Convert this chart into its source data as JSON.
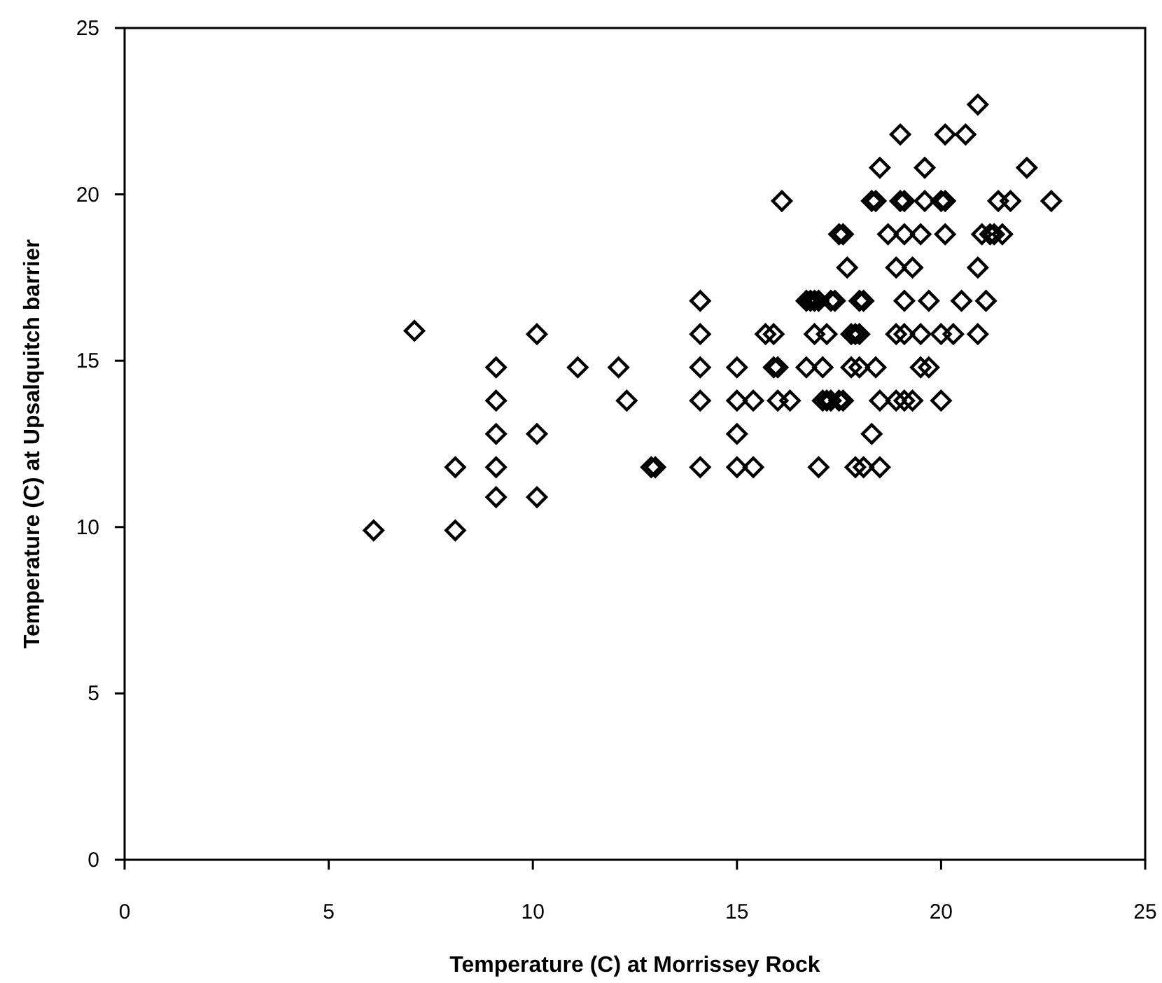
{
  "chart_data": {
    "type": "scatter",
    "xlabel": "Temperature (C) at Morrissey Rock",
    "ylabel": "Temperature (C) at Upsalquitch barrier",
    "xlim": [
      0,
      25
    ],
    "ylim": [
      0,
      25
    ],
    "xticks": [
      0,
      5,
      10,
      15,
      20,
      25
    ],
    "yticks": [
      0,
      5,
      10,
      15,
      20,
      25
    ],
    "grid": false,
    "marker": "diamond",
    "series": [
      {
        "color": "#000000",
        "x": [
          20.9,
          19.0,
          20.1,
          20.6,
          18.5,
          19.6,
          22.1,
          16.1,
          18.3,
          18.4,
          19.0,
          19.1,
          19.6,
          20.0,
          20.1,
          21.4,
          21.7,
          22.7,
          17.5,
          17.6,
          18.7,
          19.1,
          19.5,
          20.1,
          21.0,
          21.2,
          21.3,
          21.5,
          17.7,
          18.9,
          19.3,
          20.9,
          14.1,
          16.7,
          16.8,
          16.9,
          17.0,
          17.3,
          17.4,
          18.0,
          18.1,
          19.1,
          19.7,
          20.5,
          21.1,
          7.1,
          10.1,
          14.1,
          15.7,
          15.9,
          16.9,
          17.2,
          17.8,
          17.9,
          18.0,
          18.9,
          19.1,
          19.5,
          20.0,
          20.3,
          20.9,
          9.1,
          11.1,
          12.1,
          14.1,
          15.0,
          15.9,
          16.0,
          16.7,
          17.1,
          17.8,
          18.0,
          18.4,
          19.5,
          19.7,
          9.1,
          12.3,
          14.1,
          15.0,
          15.4,
          16.0,
          16.3,
          17.1,
          17.2,
          17.3,
          17.5,
          17.6,
          18.5,
          18.9,
          19.1,
          19.3,
          20.0,
          9.1,
          10.1,
          15.0,
          18.3,
          8.1,
          9.1,
          12.9,
          13.0,
          14.1,
          15.0,
          15.4,
          17.0,
          17.9,
          18.1,
          18.5,
          9.1,
          10.1,
          6.1,
          8.1
        ],
        "values": [
          22.7,
          21.8,
          21.8,
          21.8,
          20.8,
          20.8,
          20.8,
          19.8,
          19.8,
          19.8,
          19.8,
          19.8,
          19.8,
          19.8,
          19.8,
          19.8,
          19.8,
          19.8,
          18.8,
          18.8,
          18.8,
          18.8,
          18.8,
          18.8,
          18.8,
          18.8,
          18.8,
          18.8,
          17.8,
          17.8,
          17.8,
          17.8,
          16.8,
          16.8,
          16.8,
          16.8,
          16.8,
          16.8,
          16.8,
          16.8,
          16.8,
          16.8,
          16.8,
          16.8,
          16.8,
          15.9,
          15.8,
          15.8,
          15.8,
          15.8,
          15.8,
          15.8,
          15.8,
          15.8,
          15.8,
          15.8,
          15.8,
          15.8,
          15.8,
          15.8,
          15.8,
          14.8,
          14.8,
          14.8,
          14.8,
          14.8,
          14.8,
          14.8,
          14.8,
          14.8,
          14.8,
          14.8,
          14.8,
          14.8,
          14.8,
          13.8,
          13.8,
          13.8,
          13.8,
          13.8,
          13.8,
          13.8,
          13.8,
          13.8,
          13.8,
          13.8,
          13.8,
          13.8,
          13.8,
          13.8,
          13.8,
          13.8,
          12.8,
          12.8,
          12.8,
          12.8,
          11.8,
          11.8,
          11.8,
          11.8,
          11.8,
          11.8,
          11.8,
          11.8,
          11.8,
          11.8,
          11.8,
          10.9,
          10.9,
          9.9,
          9.9
        ]
      }
    ]
  }
}
